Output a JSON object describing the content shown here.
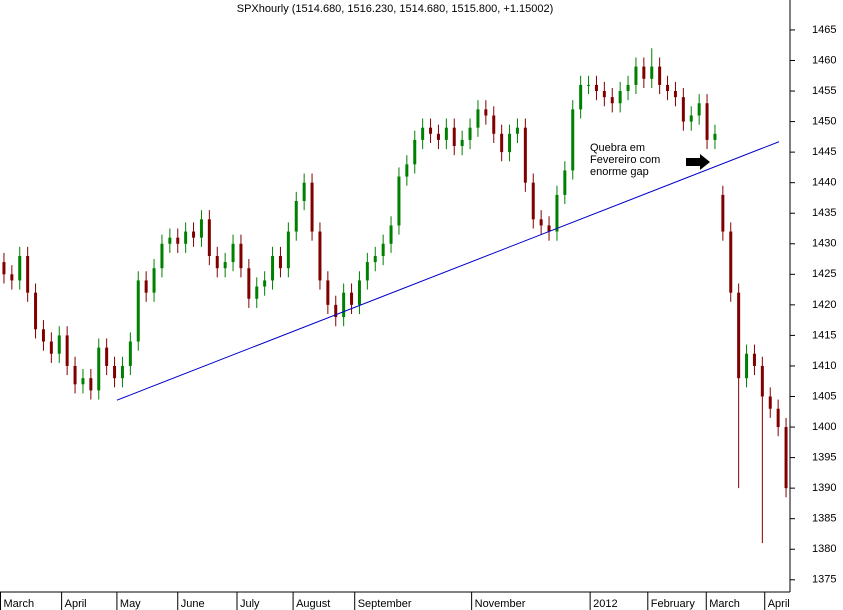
{
  "chart_data": {
    "type": "candlestick",
    "title": "SPXhourly (1514.680, 1516.230, 1514.680, 1515.800, +1.15002)",
    "x": [
      0,
      1,
      2,
      3,
      4,
      5,
      6,
      7,
      8,
      9,
      10,
      11,
      12,
      13,
      14,
      15,
      16,
      17,
      18,
      19,
      20,
      21,
      22,
      23,
      24,
      25,
      26,
      27,
      28,
      29,
      30,
      31,
      32,
      33,
      34,
      35,
      36,
      37,
      38,
      39,
      40,
      41,
      42,
      43,
      44,
      45,
      46,
      47,
      48,
      49,
      50,
      51,
      52,
      53,
      54,
      55,
      56,
      57,
      58,
      59,
      60,
      61,
      62,
      63,
      64,
      65,
      66,
      67,
      68,
      69,
      70,
      71,
      72,
      73,
      74,
      75,
      76,
      77,
      78,
      79,
      80,
      81,
      82,
      83,
      84,
      85,
      86,
      87,
      88,
      89,
      90,
      91,
      92,
      93,
      94,
      95,
      96,
      97,
      98,
      99
    ],
    "open": [
      1427,
      1425,
      1424,
      1428,
      1422,
      1416,
      1414,
      1412,
      1415,
      1410,
      1407,
      1408,
      1406,
      1413,
      1410,
      1408,
      1410,
      1414,
      1424,
      1422,
      1426,
      1430,
      1431,
      1430,
      1432,
      1431,
      1434,
      1428,
      1426,
      1427,
      1430,
      1426,
      1421,
      1423,
      1424,
      1428,
      1426,
      1432,
      1437,
      1440,
      1432,
      1424,
      1420,
      1418,
      1422,
      1420,
      1424,
      1427,
      1428,
      1430,
      1433,
      1441,
      1443,
      1447,
      1449,
      1448,
      1447,
      1449,
      1446,
      1447,
      1449,
      1452,
      1451,
      1448,
      1445,
      1448,
      1449,
      1440,
      1434,
      1433,
      1432,
      1438,
      1442,
      1452,
      1456,
      1456,
      1455,
      1454,
      1453,
      1455,
      1456,
      1459,
      1457,
      1459,
      1456,
      1455,
      1454,
      1450,
      1451,
      1453,
      1447,
      1438,
      1432,
      1422,
      1408,
      1412,
      1410,
      1405,
      1403,
      1400
    ],
    "high": [
      1428.5,
      1426.5,
      1429.5,
      1429.5,
      1423.5,
      1417.5,
      1415.5,
      1416.5,
      1416.5,
      1411.5,
      1409.5,
      1409.5,
      1414.5,
      1414.5,
      1411.5,
      1411.5,
      1415.5,
      1425.5,
      1425.5,
      1427.5,
      1431.5,
      1432.5,
      1432.5,
      1433.5,
      1433.5,
      1435.5,
      1435.5,
      1429.5,
      1428.5,
      1431.5,
      1431.5,
      1427.5,
      1424.5,
      1425.5,
      1429.5,
      1429.5,
      1433.5,
      1438.5,
      1441.5,
      1441.5,
      1433.5,
      1425.5,
      1421.5,
      1423.5,
      1423.5,
      1425.5,
      1428.5,
      1429.5,
      1431.5,
      1434.5,
      1442.5,
      1444.5,
      1448.5,
      1450.5,
      1450.5,
      1449.5,
      1450.5,
      1450.5,
      1448.5,
      1450.5,
      1453.5,
      1453.5,
      1452.5,
      1449.5,
      1449.5,
      1450.5,
      1450.5,
      1441.5,
      1435.5,
      1434.5,
      1439.5,
      1443.5,
      1453.5,
      1457.5,
      1457.5,
      1457.5,
      1456.5,
      1455.5,
      1456.5,
      1457.5,
      1460.5,
      1460.5,
      1462,
      1460.5,
      1457.5,
      1456.5,
      1455.5,
      1452.5,
      1454.5,
      1454.5,
      1449.5,
      1439.5,
      1433.5,
      1423.5,
      1413.5,
      1413.5,
      1411.5,
      1406.5,
      1404.5,
      1401.5
    ],
    "low": [
      1423.5,
      1422.5,
      1422.5,
      1420.5,
      1414.5,
      1412.5,
      1410.5,
      1410.5,
      1408.5,
      1405.5,
      1405.5,
      1404.5,
      1404.5,
      1408.5,
      1406.5,
      1406.5,
      1408.5,
      1412.5,
      1420.5,
      1420.5,
      1424.5,
      1428.5,
      1428.5,
      1428.5,
      1429.5,
      1429.5,
      1426.5,
      1424.5,
      1424.5,
      1425.5,
      1424.5,
      1419.5,
      1419.5,
      1421.5,
      1422.5,
      1424.5,
      1424.5,
      1430.5,
      1435.5,
      1430.5,
      1422.5,
      1418.5,
      1416.5,
      1416.5,
      1418.5,
      1418.5,
      1422.5,
      1425.5,
      1426.5,
      1428.5,
      1431.5,
      1439.5,
      1441.5,
      1445.5,
      1446.5,
      1445.5,
      1445.5,
      1444.5,
      1444.5,
      1445.5,
      1447.5,
      1449.5,
      1446.5,
      1443.5,
      1443.5,
      1446.5,
      1438.5,
      1432.5,
      1431.5,
      1430.5,
      1430.5,
      1436.5,
      1440.5,
      1450.5,
      1454.5,
      1453.5,
      1452.5,
      1451.5,
      1451.5,
      1453.5,
      1454.5,
      1455.5,
      1455.5,
      1454.5,
      1453.5,
      1452.5,
      1448.5,
      1448.5,
      1449.5,
      1445.5,
      1445.5,
      1430.5,
      1420.5,
      1390,
      1406.5,
      1408.5,
      1381,
      1401.5,
      1398.5,
      1388.5
    ],
    "close": [
      1425,
      1424,
      1428,
      1422,
      1416,
      1414,
      1412,
      1415,
      1410,
      1407,
      1408,
      1406,
      1413,
      1410,
      1408,
      1410,
      1414,
      1424,
      1422,
      1426,
      1430,
      1431,
      1430,
      1432,
      1431,
      1434,
      1428,
      1426,
      1427,
      1430,
      1426,
      1421,
      1423,
      1424,
      1428,
      1426,
      1432,
      1437,
      1440,
      1432,
      1424,
      1420,
      1418,
      1422,
      1420,
      1424,
      1427,
      1428,
      1430,
      1433,
      1441,
      1443,
      1447,
      1449,
      1448,
      1447,
      1449,
      1446,
      1447,
      1449,
      1452,
      1451,
      1448,
      1445,
      1448,
      1449,
      1440,
      1434,
      1433,
      1432,
      1438,
      1442,
      1452,
      1456,
      1456,
      1455,
      1454,
      1453,
      1455,
      1456,
      1459,
      1457,
      1459,
      1456,
      1455,
      1454,
      1450,
      1451,
      1453,
      1447,
      1448,
      1432,
      1422,
      1408,
      1412,
      1410,
      1405,
      1403,
      1400,
      1390
    ],
    "up_color": "#008000",
    "down_color": "#800000",
    "xlim": [
      -0.5,
      99.5
    ],
    "xticks": [
      {
        "value": -0.5,
        "label": "March"
      },
      {
        "value": 7.3,
        "label": "April"
      },
      {
        "value": 14.3,
        "label": "May"
      },
      {
        "value": 22,
        "label": "June"
      },
      {
        "value": 29.5,
        "label": "July"
      },
      {
        "value": 36.6,
        "label": "August"
      },
      {
        "value": 44.4,
        "label": "September"
      },
      {
        "value": 59.2,
        "label": "November"
      },
      {
        "value": 74.2,
        "label": "2012"
      },
      {
        "value": 81.5,
        "label": "February"
      },
      {
        "value": 88.9,
        "label": "March"
      },
      {
        "value": 96.3,
        "label": "April"
      }
    ],
    "ylim": [
      1373.0,
      1469.9
    ],
    "yticks": [
      1375,
      1380,
      1385,
      1390,
      1395,
      1400,
      1405,
      1410,
      1415,
      1420,
      1425,
      1430,
      1435,
      1440,
      1445,
      1450,
      1455,
      1460,
      1465
    ],
    "trendline": {
      "x": [
        14.3,
        98.1
      ],
      "y": [
        1404.4,
        1446.7
      ],
      "color": "#0000cc"
    },
    "annotation": [
      "Quebra em",
      "Fevereiro com",
      "enorme gap"
    ]
  }
}
